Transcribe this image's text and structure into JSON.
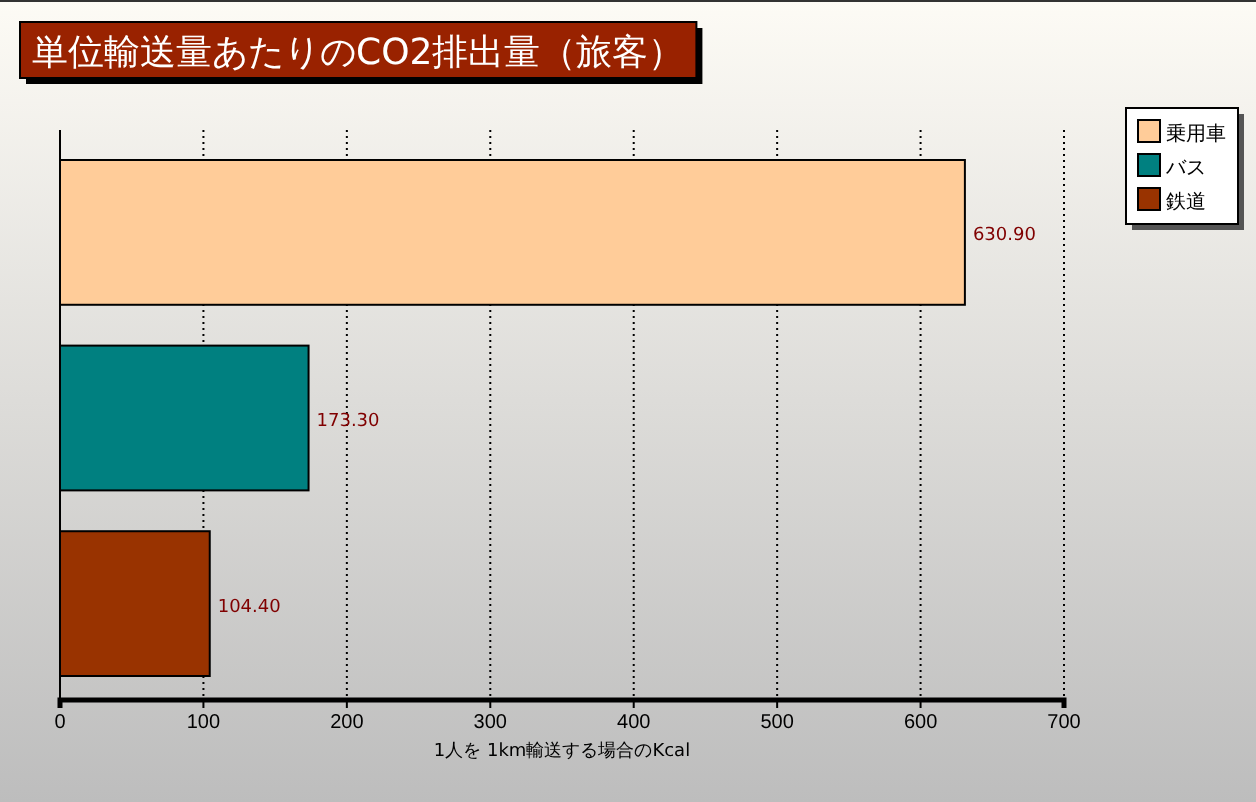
{
  "chart_data": {
    "type": "bar",
    "orientation": "horizontal",
    "title": "単位輸送量あたりのCO2排出量（旅客）",
    "xlabel": "1人を 1km輸送する場合のKcal",
    "categories": [
      null,
      null,
      null
    ],
    "series": [
      {
        "name": "乗用車",
        "color": "#ffcc99",
        "values": [
          630.9,
          null,
          null
        ],
        "value_labels": [
          "630.90",
          null,
          null
        ]
      },
      {
        "name": "バス",
        "color": "#008080",
        "values": [
          null,
          173.3,
          null
        ],
        "value_labels": [
          null,
          "173.30",
          null
        ]
      },
      {
        "name": "鉄道",
        "color": "#993300",
        "values": [
          null,
          null,
          104.4
        ],
        "value_labels": [
          null,
          null,
          "104.40"
        ]
      }
    ],
    "xlim": [
      0,
      700
    ],
    "xticks": [
      0,
      100,
      200,
      300,
      400,
      500,
      600,
      700
    ],
    "grid": "x",
    "legend": "top right"
  }
}
